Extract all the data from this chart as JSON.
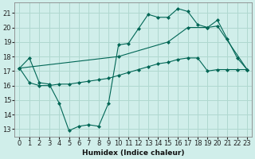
{
  "xlabel": "Humidex (Indice chaleur)",
  "bg_color": "#d0eeea",
  "grid_color": "#b0d8d0",
  "line_color": "#006655",
  "xlim": [
    -0.5,
    23.5
  ],
  "ylim": [
    12.5,
    21.7
  ],
  "yticks": [
    13,
    14,
    15,
    16,
    17,
    18,
    19,
    20,
    21
  ],
  "xticks": [
    0,
    1,
    2,
    3,
    4,
    5,
    6,
    7,
    8,
    9,
    10,
    11,
    12,
    13,
    14,
    15,
    16,
    17,
    18,
    19,
    20,
    21,
    22,
    23
  ],
  "series1_x": [
    0,
    1,
    2,
    3,
    4,
    5,
    6,
    7,
    8,
    9,
    10,
    11,
    12,
    13,
    14,
    15,
    16,
    17,
    18,
    19,
    20,
    21,
    22,
    23
  ],
  "series1_y": [
    17.2,
    17.9,
    16.2,
    16.1,
    14.8,
    12.9,
    13.2,
    13.3,
    13.2,
    14.8,
    18.8,
    18.9,
    19.9,
    20.9,
    20.7,
    20.7,
    21.3,
    21.1,
    20.2,
    20.0,
    20.5,
    19.2,
    17.9,
    17.1
  ],
  "series2_x": [
    0,
    1,
    2,
    3,
    4,
    5,
    6,
    7,
    8,
    9,
    10,
    11,
    12,
    13,
    14,
    15,
    16,
    17,
    18,
    19,
    20,
    21,
    22,
    23
  ],
  "series2_y": [
    17.2,
    16.2,
    16.0,
    16.0,
    16.1,
    16.1,
    16.2,
    16.3,
    16.4,
    16.5,
    16.7,
    16.9,
    17.1,
    17.3,
    17.5,
    17.6,
    17.8,
    17.9,
    17.9,
    17.0,
    17.1,
    17.1,
    17.1,
    17.1
  ],
  "series3_x": [
    0,
    10,
    15,
    17,
    19,
    20,
    23
  ],
  "series3_y": [
    17.2,
    18.0,
    19.0,
    20.0,
    20.0,
    20.1,
    17.1
  ],
  "tick_fontsize": 6,
  "xlabel_fontsize": 6.5
}
